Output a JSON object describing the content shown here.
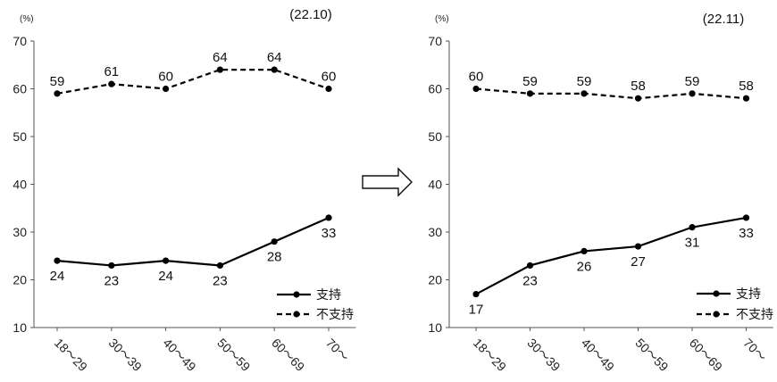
{
  "chart_data": [
    {
      "type": "line",
      "period": "(22.10)",
      "unit": "(%)",
      "categories": [
        "18～29",
        "30～39",
        "40～49",
        "50～59",
        "60～69",
        "70～"
      ],
      "yticks": [
        "10",
        "20",
        "30",
        "40",
        "50",
        "60",
        "70"
      ],
      "ylim": [
        10,
        70
      ],
      "series": [
        {
          "name": "支持",
          "style": "solid",
          "values": [
            24,
            23,
            24,
            23,
            28,
            33
          ]
        },
        {
          "name": "不支持",
          "style": "dashed",
          "values": [
            59,
            61,
            60,
            64,
            64,
            60
          ]
        }
      ],
      "legend": "bottom-right"
    },
    {
      "type": "line",
      "period": "(22.11)",
      "unit": "(%)",
      "categories": [
        "18～29",
        "30～39",
        "40～49",
        "50～59",
        "60～69",
        "70～"
      ],
      "yticks": [
        "10",
        "20",
        "30",
        "40",
        "50",
        "60",
        "70"
      ],
      "ylim": [
        10,
        70
      ],
      "series": [
        {
          "name": "支持",
          "style": "solid",
          "values": [
            17,
            23,
            26,
            27,
            31,
            33
          ]
        },
        {
          "name": "不支持",
          "style": "dashed",
          "values": [
            60,
            59,
            59,
            58,
            59,
            58
          ]
        }
      ],
      "legend": "bottom-right"
    }
  ],
  "arrow": "right-arrow-icon",
  "colors": {
    "line": "#000000",
    "axis": "#555555"
  }
}
